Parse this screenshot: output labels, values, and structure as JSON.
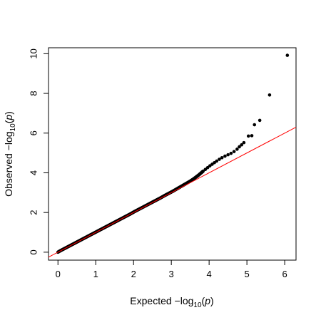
{
  "chart_data": {
    "type": "scatter",
    "title": "",
    "xlabel": "Expected −log10(p)",
    "ylabel": "Observed −log10(p)",
    "xlabel_parts": {
      "prefix": "Expected  −log",
      "sub": "10",
      "paren": "(",
      "var": "p",
      "close": ")"
    },
    "ylabel_parts": {
      "prefix": "Observed  −log",
      "sub": "10",
      "paren": "(",
      "var": "p",
      "close": ")"
    },
    "xlim": [
      -0.25,
      6.3
    ],
    "ylim": [
      -0.4,
      10.3
    ],
    "x_ticks": [
      0,
      1,
      2,
      3,
      4,
      5,
      6
    ],
    "y_ticks": [
      0,
      2,
      4,
      6,
      8,
      10
    ],
    "grid": false,
    "reference_line": {
      "slope": 1,
      "intercept": 0,
      "color": "#ff0000"
    },
    "point_color": "#000000",
    "series": [
      {
        "values": [
          [
            0.0,
            0.0
          ],
          [
            0.05,
            0.06
          ],
          [
            0.1,
            0.11
          ],
          [
            0.16,
            0.17
          ],
          [
            0.22,
            0.23
          ],
          [
            0.28,
            0.29
          ],
          [
            0.35,
            0.36
          ],
          [
            0.42,
            0.43
          ],
          [
            0.5,
            0.51
          ],
          [
            0.58,
            0.59
          ],
          [
            0.66,
            0.67
          ],
          [
            0.75,
            0.76
          ],
          [
            0.84,
            0.85
          ],
          [
            0.93,
            0.94
          ],
          [
            1.02,
            1.03
          ],
          [
            1.12,
            1.13
          ],
          [
            1.22,
            1.23
          ],
          [
            1.32,
            1.33
          ],
          [
            1.42,
            1.43
          ],
          [
            1.52,
            1.53
          ],
          [
            1.62,
            1.63
          ],
          [
            1.72,
            1.73
          ],
          [
            1.82,
            1.83
          ],
          [
            1.92,
            1.93
          ],
          [
            2.02,
            2.04
          ],
          [
            2.12,
            2.14
          ],
          [
            2.22,
            2.24
          ],
          [
            2.32,
            2.34
          ],
          [
            2.42,
            2.44
          ],
          [
            2.52,
            2.54
          ],
          [
            2.62,
            2.64
          ],
          [
            2.72,
            2.74
          ],
          [
            2.82,
            2.85
          ],
          [
            2.92,
            2.95
          ],
          [
            3.02,
            3.05
          ],
          [
            3.12,
            3.16
          ],
          [
            3.22,
            3.27
          ],
          [
            3.32,
            3.38
          ],
          [
            3.42,
            3.49
          ],
          [
            3.5,
            3.58
          ],
          [
            3.58,
            3.68
          ],
          [
            3.65,
            3.78
          ],
          [
            3.72,
            3.88
          ],
          [
            3.78,
            3.98
          ],
          [
            3.84,
            4.08
          ],
          [
            3.9,
            4.17
          ],
          [
            3.96,
            4.26
          ],
          [
            4.02,
            4.35
          ],
          [
            4.08,
            4.43
          ],
          [
            4.14,
            4.51
          ],
          [
            4.2,
            4.59
          ],
          [
            4.27,
            4.68
          ],
          [
            4.34,
            4.76
          ],
          [
            4.42,
            4.84
          ],
          [
            4.5,
            4.91
          ],
          [
            4.58,
            4.98
          ],
          [
            4.66,
            5.07
          ],
          [
            4.74,
            5.19
          ],
          [
            4.8,
            5.31
          ],
          [
            4.86,
            5.41
          ],
          [
            4.92,
            5.52
          ],
          [
            5.04,
            5.85
          ],
          [
            5.13,
            5.87
          ],
          [
            5.2,
            6.42
          ],
          [
            5.34,
            6.64
          ],
          [
            5.6,
            7.92
          ],
          [
            6.07,
            9.92
          ]
        ]
      }
    ]
  }
}
